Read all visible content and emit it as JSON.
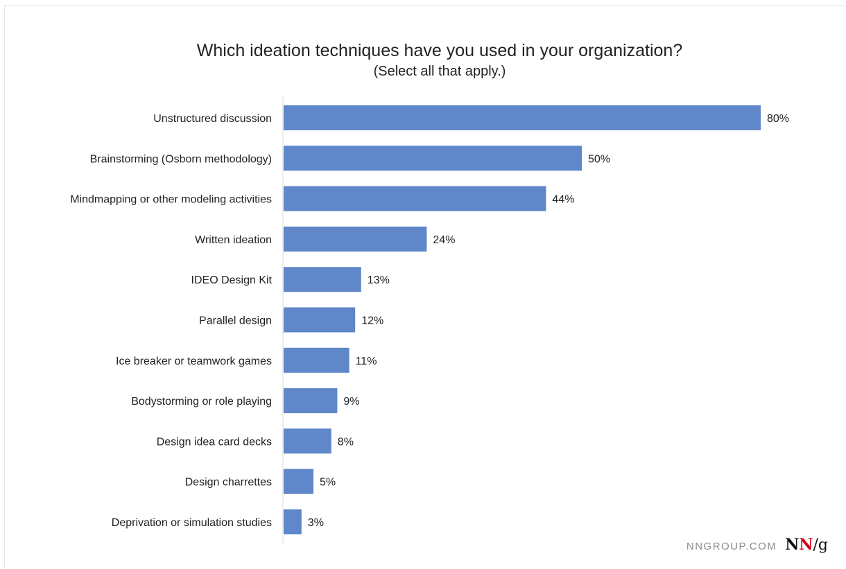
{
  "chart_data": {
    "type": "bar",
    "orientation": "horizontal",
    "title": "Which ideation techniques have you used in your organization?",
    "subtitle": "(Select all that apply.)",
    "categories": [
      "Unstructured discussion",
      "Brainstorming (Osborn methodology)",
      "Mindmapping or other modeling activities",
      "Written ideation",
      "IDEO Design Kit",
      "Parallel design",
      "Ice breaker or teamwork games",
      "Bodystorming or role playing",
      "Design idea card decks",
      "Design charrettes",
      "Deprivation or simulation studies"
    ],
    "values": [
      80,
      50,
      44,
      24,
      13,
      12,
      11,
      9,
      8,
      5,
      3
    ],
    "value_labels": [
      "80%",
      "50%",
      "44%",
      "24%",
      "13%",
      "12%",
      "11%",
      "9%",
      "8%",
      "5%",
      "3%"
    ],
    "xlim": [
      0,
      80
    ],
    "grid": false,
    "legend": "none",
    "bar_color": "#5f87c9"
  },
  "watermark": {
    "site": "NNGROUP.COM",
    "logo_n1": "N",
    "logo_n2": "N",
    "logo_slash": "/",
    "logo_g": "g"
  }
}
